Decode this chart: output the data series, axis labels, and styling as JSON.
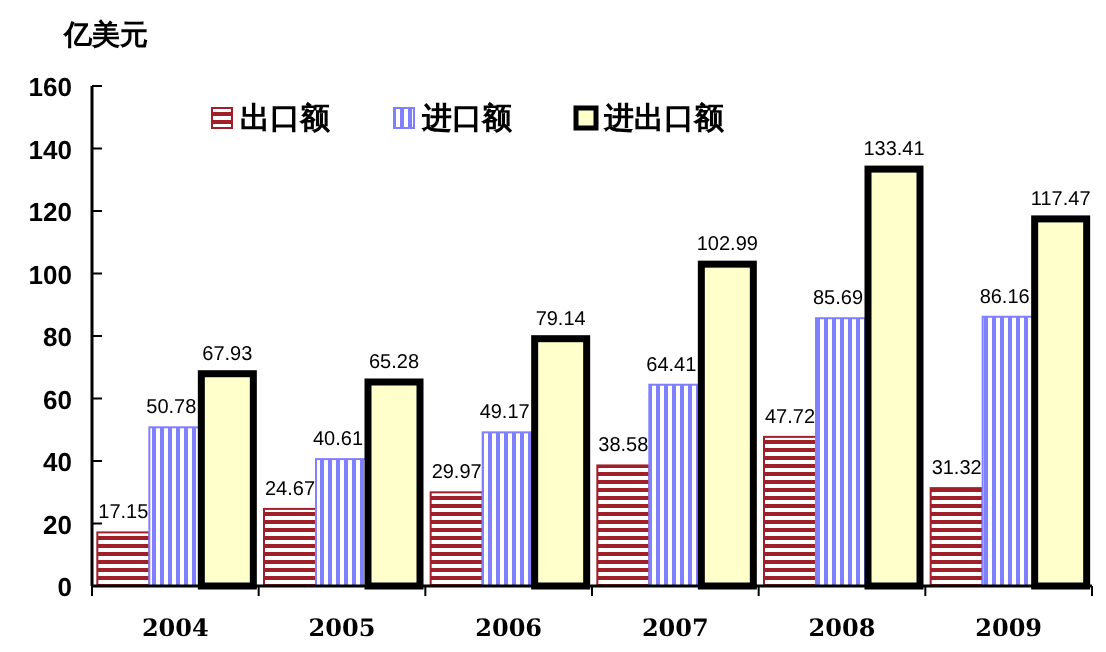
{
  "chart_data": {
    "type": "bar",
    "ylabel": "亿美元",
    "categories": [
      "2004",
      "2005",
      "2006",
      "2007",
      "2008",
      "2009"
    ],
    "series": [
      {
        "name": "出口额",
        "color": "#a0202a",
        "values": [
          17.15,
          24.67,
          29.97,
          38.58,
          47.72,
          31.32
        ]
      },
      {
        "name": "进口额",
        "color": "#8080ff",
        "values": [
          50.78,
          40.61,
          49.17,
          64.41,
          85.69,
          86.16
        ]
      },
      {
        "name": "进出口额",
        "color": "#ffffcc",
        "values": [
          67.93,
          65.28,
          79.14,
          102.99,
          133.41,
          117.47
        ]
      }
    ],
    "ylim": [
      0,
      160
    ],
    "yticks": [
      0,
      20,
      40,
      60,
      80,
      100,
      120,
      140,
      160
    ],
    "data_labels": true,
    "legend": "top",
    "grid": false
  }
}
